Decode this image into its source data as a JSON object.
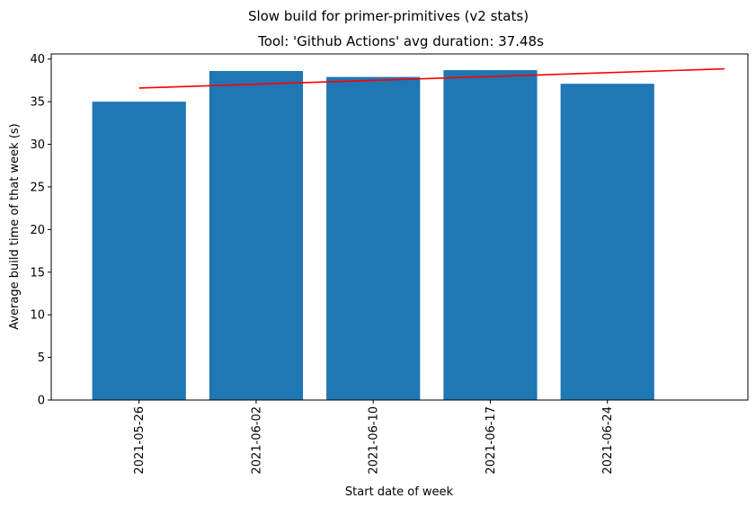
{
  "chart_data": {
    "type": "bar",
    "suptitle": "Slow build for primer-primitives (v2 stats)",
    "title": "Tool: 'Github Actions' avg duration: 37.48s",
    "xlabel": "Start date of week",
    "ylabel": "Average build time of that week (s)",
    "categories": [
      "2021-05-26",
      "2021-06-02",
      "2021-06-10",
      "2021-06-17",
      "2021-06-24"
    ],
    "values": [
      35.0,
      38.6,
      37.9,
      38.7,
      37.1
    ],
    "ylim": [
      0,
      40.6
    ],
    "yticks": [
      0,
      5,
      10,
      15,
      20,
      25,
      30,
      35,
      40
    ],
    "bar_color": "#1f77b4",
    "trend_line": {
      "color": "#ff0000",
      "x_start": 0,
      "x_end": 5,
      "y_start": 36.6,
      "y_end": 38.85
    },
    "grid": false,
    "legend": "none"
  }
}
